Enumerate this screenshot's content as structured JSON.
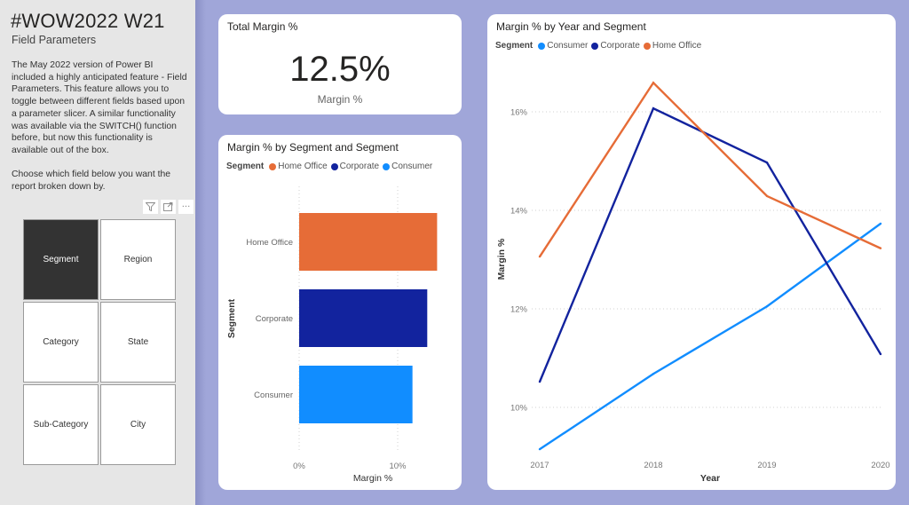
{
  "sidebar": {
    "title": "#WOW2022 W21",
    "subtitle": "Field Parameters",
    "description": "The May 2022 version of Power BI included a highly anticipated feature - Field Parameters. This feature allows you to toggle between different fields based upon a parameter slicer. A similar functionality was available via the SWITCH() function before, but now this functionality is available out of the box.\n\nChoose which field below you want the report broken down by.",
    "toolbar": [
      {
        "icon": "filter-icon",
        "glyph": "▽"
      },
      {
        "icon": "focus-mode-icon",
        "glyph": "⤢"
      },
      {
        "icon": "more-options-icon",
        "glyph": "···"
      }
    ],
    "slicer": {
      "selected": "Segment",
      "options": [
        "Segment",
        "Region",
        "Category",
        "State",
        "Sub-Category",
        "City"
      ]
    }
  },
  "colors": {
    "home_office": "#e66c37",
    "corporate": "#12239e",
    "consumer": "#118dff",
    "selected_tile": "#333333",
    "canvas": "#a0a6d9"
  },
  "kpi": {
    "title": "Total Margin %",
    "value": "12.5%",
    "label": "Margin %"
  },
  "bar_chart": {
    "title": "Margin % by Segment and Segment",
    "legend_title": "Segment",
    "legend": [
      "Home Office",
      "Corporate",
      "Consumer"
    ]
  },
  "line_chart": {
    "title": "Margin % by Year and Segment",
    "legend_title": "Segment",
    "legend": [
      "Consumer",
      "Corporate",
      "Home Office"
    ]
  },
  "chart_data": [
    {
      "type": "bar",
      "orientation": "horizontal",
      "title": "Margin % by Segment and Segment",
      "categories": [
        "Home Office",
        "Corporate",
        "Consumer"
      ],
      "values": [
        14.0,
        13.0,
        11.5
      ],
      "colors": [
        "#e66c37",
        "#12239e",
        "#118dff"
      ],
      "xlabel": "Margin %",
      "ylabel": "Segment",
      "xlim": [
        0,
        14.5
      ],
      "xticks": [
        0,
        10
      ],
      "xtick_labels": [
        "0%",
        "10%"
      ],
      "grid": true,
      "legend_title": "Segment",
      "legend": [
        "Home Office",
        "Corporate",
        "Consumer"
      ],
      "legend_position": "top-left"
    },
    {
      "type": "line",
      "title": "Margin % by Year and Segment",
      "x": [
        "2017",
        "2018",
        "2019",
        "2020"
      ],
      "series": [
        {
          "name": "Consumer",
          "color": "#118dff",
          "values": [
            9.15,
            10.68,
            12.05,
            13.73
          ]
        },
        {
          "name": "Corporate",
          "color": "#12239e",
          "values": [
            10.52,
            16.07,
            14.97,
            11.08
          ]
        },
        {
          "name": "Home Office",
          "color": "#e66c37",
          "values": [
            13.06,
            16.59,
            14.29,
            13.23
          ]
        }
      ],
      "xlabel": "Year",
      "ylabel": "Margin %",
      "ylim": [
        8.9,
        16.8
      ],
      "yticks": [
        10,
        12,
        14,
        16
      ],
      "ytick_labels": [
        "10%",
        "12%",
        "14%",
        "16%"
      ],
      "grid": true,
      "legend_title": "Segment",
      "legend_position": "top-left"
    }
  ]
}
